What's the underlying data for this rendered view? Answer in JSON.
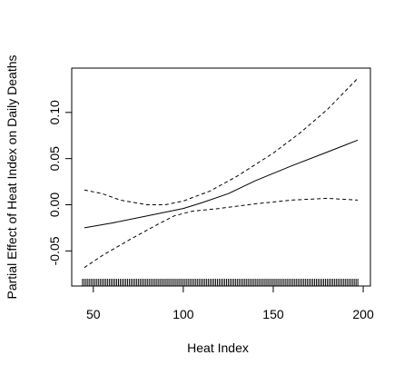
{
  "chart_data": {
    "type": "line",
    "xlabel": "Heat Index",
    "ylabel": "Partial Effect of Heat Index on Daily Deaths",
    "xlim": [
      38,
      204
    ],
    "ylim": [
      -0.088,
      0.148
    ],
    "x_ticks": [
      50,
      100,
      150,
      200
    ],
    "y_ticks": [
      -0.05,
      0.0,
      0.05,
      0.1
    ],
    "x_tick_labels": [
      "50",
      "100",
      "150",
      "200"
    ],
    "y_tick_labels": [
      "-0.05",
      "0.00",
      "0.05",
      "0.10"
    ],
    "grid": false,
    "legend": "none",
    "series": [
      {
        "style": "solid",
        "x": [
          45,
          60,
          80,
          100,
          110,
          125,
          140,
          160,
          180,
          197
        ],
        "y": [
          -0.025,
          -0.02,
          -0.012,
          -0.004,
          0.002,
          0.012,
          0.026,
          0.042,
          0.057,
          0.07
        ]
      },
      {
        "style": "dashed",
        "x": [
          45,
          55,
          70,
          85,
          95,
          105,
          120,
          140,
          160,
          180,
          197
        ],
        "y": [
          -0.068,
          -0.055,
          -0.038,
          -0.022,
          -0.012,
          -0.007,
          -0.004,
          0.001,
          0.005,
          0.007,
          0.005
        ]
      },
      {
        "style": "dashed",
        "x": [
          45,
          55,
          65,
          80,
          90,
          100,
          115,
          130,
          150,
          165,
          180,
          197
        ],
        "y": [
          0.016,
          0.012,
          0.005,
          0.0,
          0.0,
          0.004,
          0.015,
          0.031,
          0.056,
          0.078,
          0.103,
          0.137
        ]
      }
    ],
    "rug": {
      "x_start": 44,
      "x_end": 197,
      "step": 1
    }
  }
}
